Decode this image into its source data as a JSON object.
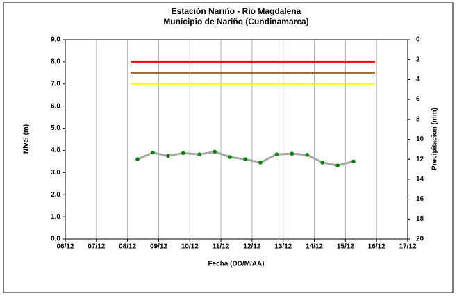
{
  "chart_data": {
    "type": "line",
    "title": "Estación Nariño  - Río Magdalena",
    "subtitle": "Municipio de Nariño (Cundinamarca)",
    "x_label": "Fecha (DD/M/AA)",
    "y_label": "Nivel (m)",
    "y2_label": "Precipitacion (mm)",
    "xlim": [
      6,
      17
    ],
    "xticks": [
      {
        "value": 6,
        "label": "06/12"
      },
      {
        "value": 7,
        "label": "07/12"
      },
      {
        "value": 8,
        "label": "08/12"
      },
      {
        "value": 9,
        "label": "09/12"
      },
      {
        "value": 10,
        "label": "10/12"
      },
      {
        "value": 11,
        "label": "11/12"
      },
      {
        "value": 12,
        "label": "12/12"
      },
      {
        "value": 13,
        "label": "13/12"
      },
      {
        "value": 14,
        "label": "14/12"
      },
      {
        "value": 15,
        "label": "15/12"
      },
      {
        "value": 16,
        "label": "16/12"
      },
      {
        "value": 17,
        "label": "17/12"
      }
    ],
    "ylim": [
      0,
      9
    ],
    "yticks": [
      {
        "value": 0,
        "label": "0.0"
      },
      {
        "value": 1,
        "label": "1.0"
      },
      {
        "value": 2,
        "label": "2.0"
      },
      {
        "value": 3,
        "label": "3.0"
      },
      {
        "value": 4,
        "label": "4.0"
      },
      {
        "value": 5,
        "label": "5.0"
      },
      {
        "value": 6,
        "label": "6.0"
      },
      {
        "value": 7,
        "label": "7.0"
      },
      {
        "value": 8,
        "label": "8.0"
      },
      {
        "value": 9,
        "label": "9.0"
      }
    ],
    "y2lim": [
      20,
      0
    ],
    "y2ticks": [
      0,
      2,
      4,
      6,
      8,
      10,
      12,
      14,
      16,
      18,
      20
    ],
    "grid": "x",
    "series": [
      {
        "color": "#008000",
        "line_color": "#a6a6a6",
        "x": [
          8.32,
          8.81,
          9.3,
          9.79,
          10.31,
          10.8,
          11.29,
          11.78,
          12.27,
          12.79,
          13.28,
          13.77,
          14.26,
          14.75,
          15.26
        ],
        "values": [
          3.6,
          3.9,
          3.75,
          3.88,
          3.82,
          3.94,
          3.7,
          3.6,
          3.45,
          3.82,
          3.85,
          3.8,
          3.45,
          3.32,
          3.5
        ]
      },
      {
        "color": "#ff0000",
        "x": [
          8.1,
          15.95
        ],
        "values": [
          8,
          8
        ]
      },
      {
        "color": "#996633",
        "x": [
          8.1,
          15.95
        ],
        "values": [
          7.5,
          7.5
        ]
      },
      {
        "color": "#ffff00",
        "x": [
          8.1,
          15.95
        ],
        "values": [
          7,
          7
        ]
      }
    ]
  }
}
